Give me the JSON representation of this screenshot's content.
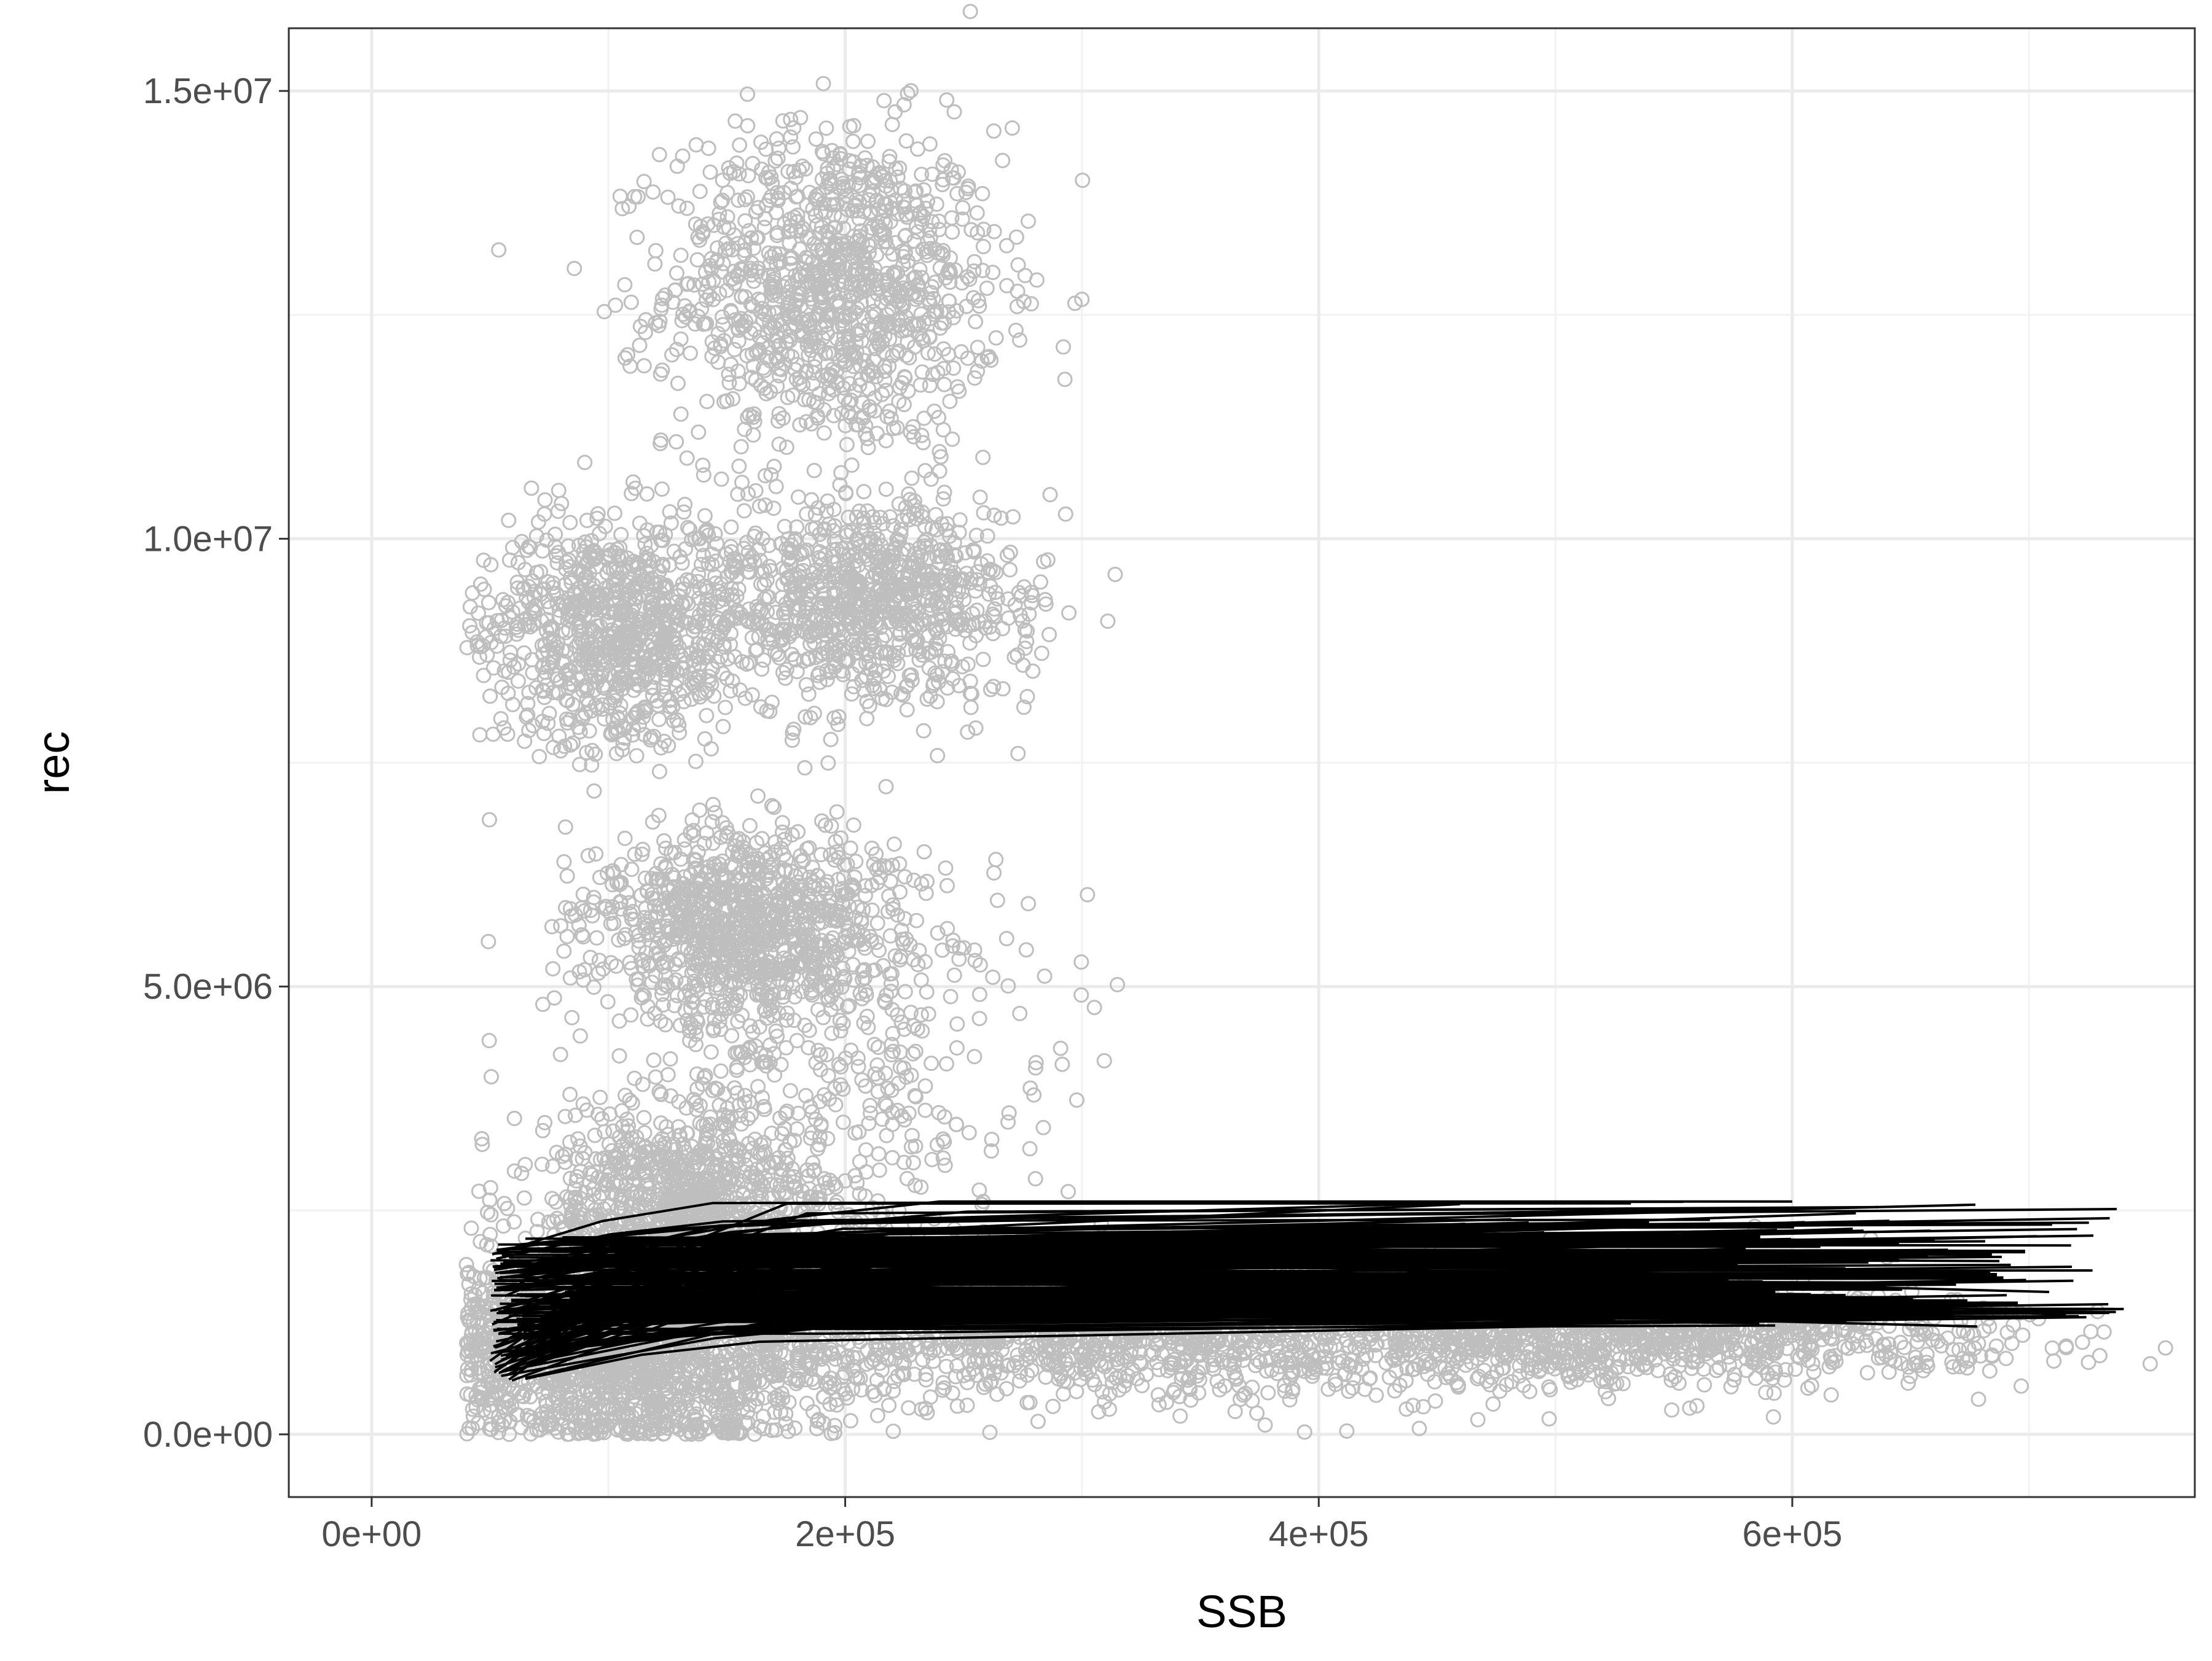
{
  "chart_data": {
    "type": "scatter",
    "title": "",
    "xlabel": "SSB",
    "ylabel": "rec",
    "xlim": [
      -35000,
      770000
    ],
    "ylim": [
      -700000,
      15700000
    ],
    "x_ticks": [
      0,
      200000,
      400000,
      600000
    ],
    "x_tick_labels": [
      "0e+00",
      "2e+05",
      "4e+05",
      "6e+05"
    ],
    "y_ticks": [
      0,
      5000000,
      10000000,
      15000000
    ],
    "y_tick_labels": [
      "0.0e+00",
      "5.0e+06",
      "1.0e+07",
      "1.5e+07"
    ],
    "grid": true,
    "legend": "none",
    "colors": {
      "points": "#bebebe",
      "lines": "#000000",
      "grid_major": "#ebebeb",
      "grid_minor": "#f2f2f2",
      "panel_border": "#333333"
    },
    "point_clusters": [
      {
        "cx": 195000,
        "cy": 12800000,
        "sx": 35000,
        "sy": 900000,
        "n": 1100
      },
      {
        "cx": 105000,
        "cy": 9000000,
        "sx": 28000,
        "sy": 650000,
        "n": 900
      },
      {
        "cx": 210000,
        "cy": 9300000,
        "sx": 32000,
        "sy": 600000,
        "n": 900
      },
      {
        "cx": 155000,
        "cy": 5700000,
        "sx": 32000,
        "sy": 500000,
        "n": 900
      },
      {
        "cx": 190000,
        "cy": 4300000,
        "sx": 45000,
        "sy": 1300000,
        "n": 500
      },
      {
        "cx": 130000,
        "cy": 2600000,
        "sx": 30000,
        "sy": 500000,
        "n": 900
      },
      {
        "cx": 110000,
        "cy": 900000,
        "sx": 40000,
        "sy": 600000,
        "n": 1500
      },
      {
        "cx": 300000,
        "cy": 1200000,
        "sx": 120000,
        "sy": 400000,
        "n": 1800
      },
      {
        "cx": 540000,
        "cy": 1100000,
        "sx": 80000,
        "sy": 250000,
        "n": 900
      }
    ],
    "line_bundle": {
      "count": 120,
      "x_start_range": [
        50000,
        65000
      ],
      "y_start_range": [
        600000,
        2200000
      ],
      "x_end_range": [
        450000,
        740000
      ],
      "y_end_range": [
        1200000,
        2600000
      ]
    },
    "notable_lines": [
      {
        "x": [
          55000,
          150000,
          740000
        ],
        "y": [
          700000,
          1200000,
          1400000
        ]
      },
      {
        "x": [
          60000,
          170000,
          240000,
          600000
        ],
        "y": [
          1900000,
          2400000,
          2600000,
          2600000
        ]
      }
    ]
  }
}
